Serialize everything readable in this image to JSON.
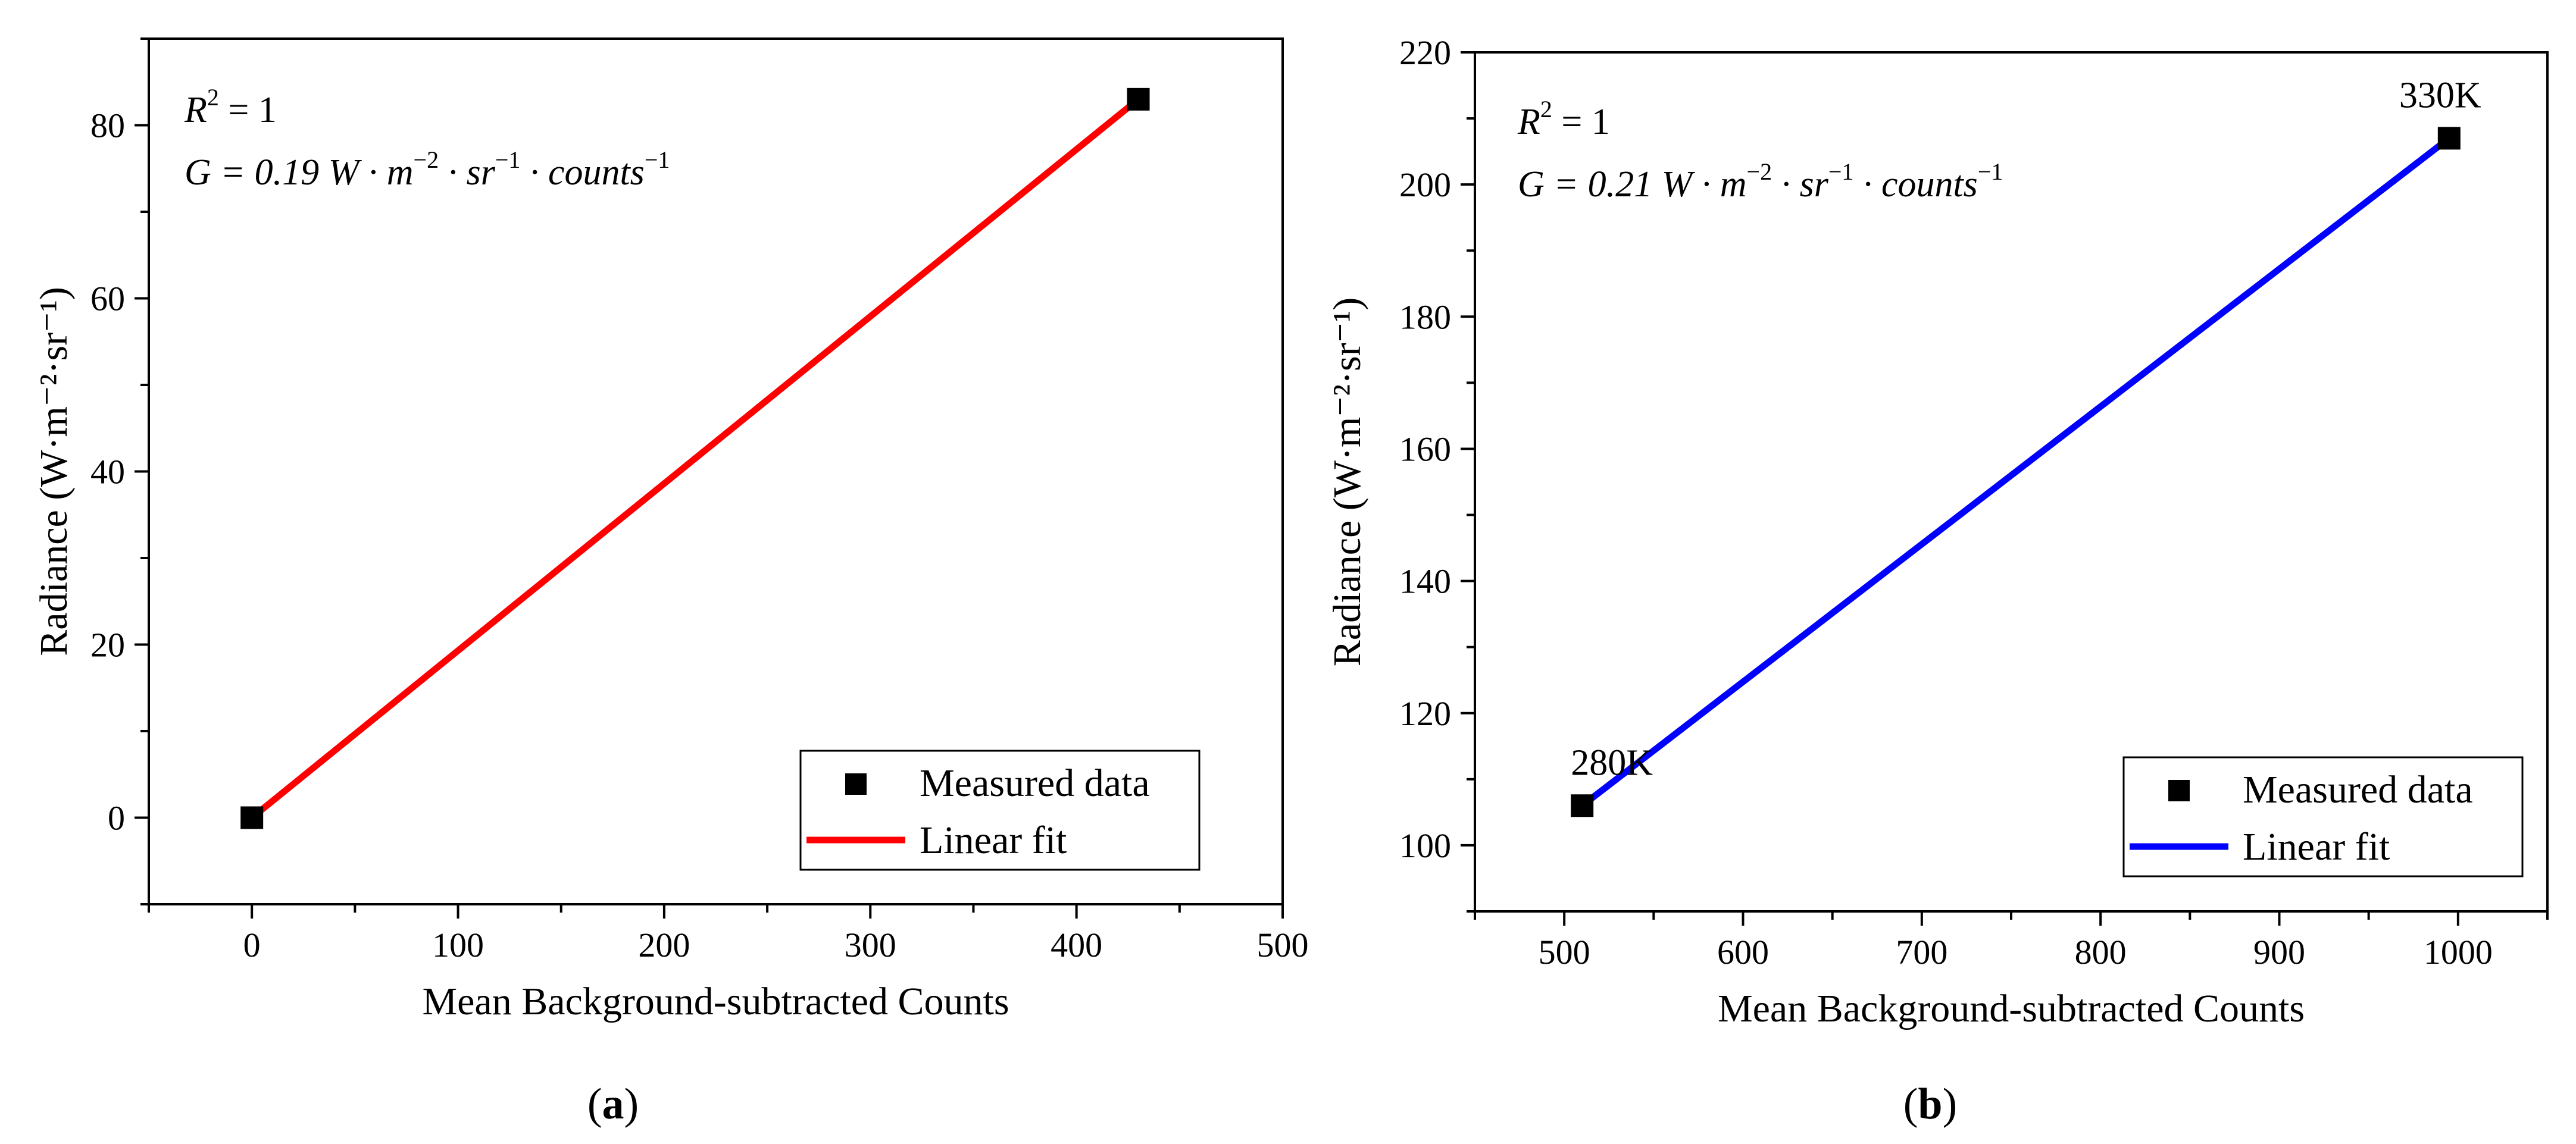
{
  "chart_data": [
    {
      "type": "scatter",
      "panel_label": "(a)",
      "title": "",
      "xlabel": "Mean Background-subtracted Counts",
      "ylabel": "Radiance (W·m⁻²·sr⁻¹)",
      "xlim": [
        -50,
        500
      ],
      "ylim": [
        -10,
        90
      ],
      "xticks": [
        0,
        100,
        200,
        300,
        400,
        500
      ],
      "yticks": [
        0,
        20,
        40,
        60,
        80
      ],
      "xtick_labels": [
        "0",
        "100",
        "200",
        "300",
        "400",
        "500"
      ],
      "ytick_labels": [
        "0",
        "20",
        "40",
        "60",
        "80"
      ],
      "series": [
        {
          "name": "Measured data",
          "kind": "scatter",
          "marker": "square",
          "color": "#000000",
          "x": [
            0,
            430
          ],
          "y": [
            0,
            83
          ]
        },
        {
          "name": "Linear fit",
          "kind": "line",
          "color": "#ff0000",
          "x": [
            0,
            430
          ],
          "y": [
            0,
            83
          ]
        }
      ],
      "annotations": {
        "r2_lhs": "R",
        "r2_exp": "2",
        "r2_rhs": " = 1",
        "g_prefix": "G = 0.19 ",
        "g_unit": "W · m",
        "g_exp1": "−2",
        "g_sr": " · sr",
        "g_exp2": "−1",
        "g_counts": " · counts",
        "g_exp3": "−1"
      },
      "point_labels": [],
      "legend": {
        "position": "bottom-right",
        "items": [
          "Measured data",
          "Linear fit"
        ]
      },
      "grid": false
    },
    {
      "type": "scatter",
      "panel_label": "(b)",
      "title": "",
      "xlabel": "Mean Background-subtracted Counts",
      "ylabel": "Radiance (W·m⁻²·sr⁻¹)",
      "xlim": [
        450,
        1050
      ],
      "ylim": [
        90,
        220
      ],
      "xticks": [
        500,
        600,
        700,
        800,
        900,
        1000
      ],
      "yticks": [
        100,
        120,
        140,
        160,
        180,
        200,
        220
      ],
      "xtick_labels": [
        "500",
        "600",
        "700",
        "800",
        "900",
        "1000"
      ],
      "ytick_labels": [
        "100",
        "120",
        "140",
        "160",
        "180",
        "200",
        "220"
      ],
      "series": [
        {
          "name": "Measured data",
          "kind": "scatter",
          "marker": "square",
          "color": "#000000",
          "x": [
            510,
            995
          ],
          "y": [
            106,
            207
          ]
        },
        {
          "name": "Linear fit",
          "kind": "line",
          "color": "#0000ff",
          "x": [
            510,
            995
          ],
          "y": [
            106,
            207
          ]
        }
      ],
      "annotations": {
        "r2_lhs": "R",
        "r2_exp": "2",
        "r2_rhs": " = 1",
        "g_prefix": "G = 0.21 ",
        "g_unit": "W · m",
        "g_exp1": "−2",
        "g_sr": " · sr",
        "g_exp2": "−1",
        "g_counts": " · counts",
        "g_exp3": "−1"
      },
      "point_labels": [
        {
          "text": "280K",
          "x": 510,
          "y": 106
        },
        {
          "text": "330K",
          "x": 995,
          "y": 207
        }
      ],
      "legend": {
        "position": "bottom-right",
        "items": [
          "Measured data",
          "Linear fit"
        ]
      },
      "grid": false
    }
  ]
}
